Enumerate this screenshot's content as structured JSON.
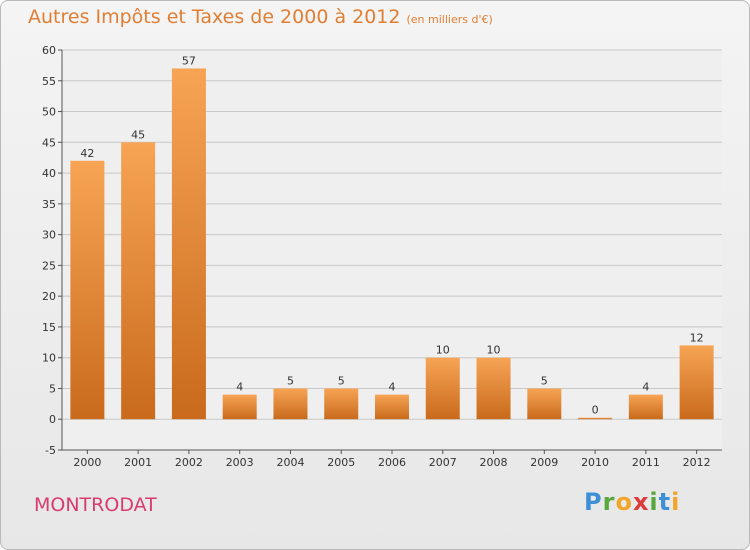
{
  "chart_data": {
    "type": "bar",
    "title": "Autres Impôts et Taxes de 2000 à 2012",
    "subtitle": "(en milliers d'€)",
    "categories": [
      "2000",
      "2001",
      "2002",
      "2003",
      "2004",
      "2005",
      "2006",
      "2007",
      "2008",
      "2009",
      "2010",
      "2011",
      "2012"
    ],
    "values": [
      42,
      45,
      57,
      4,
      5,
      5,
      4,
      10,
      10,
      5,
      0,
      4,
      12
    ],
    "ylim": [
      -5,
      60
    ],
    "yticks": [
      -5,
      0,
      5,
      10,
      15,
      20,
      25,
      30,
      35,
      40,
      45,
      50,
      55,
      60
    ],
    "grid": true,
    "bar_color_top": "#f7a455",
    "bar_color_bottom": "#c96a1c"
  },
  "footer": {
    "commune": "MONTRODAT",
    "logo": [
      "P",
      "r",
      "o",
      "x",
      "i",
      "t",
      "i"
    ]
  }
}
